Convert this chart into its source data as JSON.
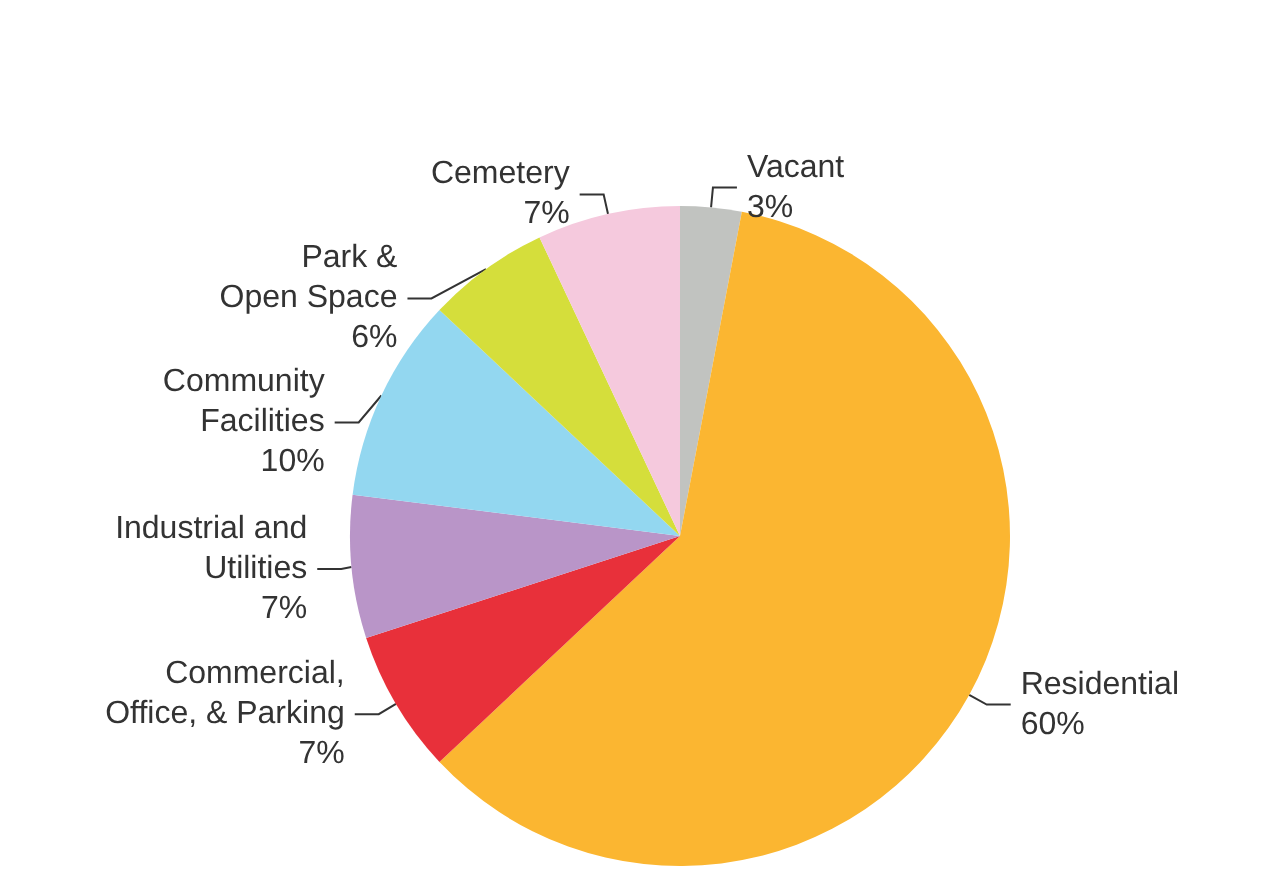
{
  "chart_data": {
    "type": "pie",
    "categories": [
      "Vacant",
      "Residential",
      "Commercial,\nOffice, & Parking",
      "Industrial and\nUtilities",
      "Community\nFacilities",
      "Park &\nOpen Space",
      "Cemetery"
    ],
    "values": [
      3,
      60,
      7,
      7,
      10,
      6,
      7
    ],
    "value_labels": [
      "3%",
      "60%",
      "7%",
      "7%",
      "10%",
      "6%",
      "7%"
    ],
    "colors": [
      "#c1c3c0",
      "#fbb631",
      "#e8303a",
      "#b995c8",
      "#93d7f0",
      "#d5de3b",
      "#f5c9dd"
    ],
    "legend": false
  }
}
